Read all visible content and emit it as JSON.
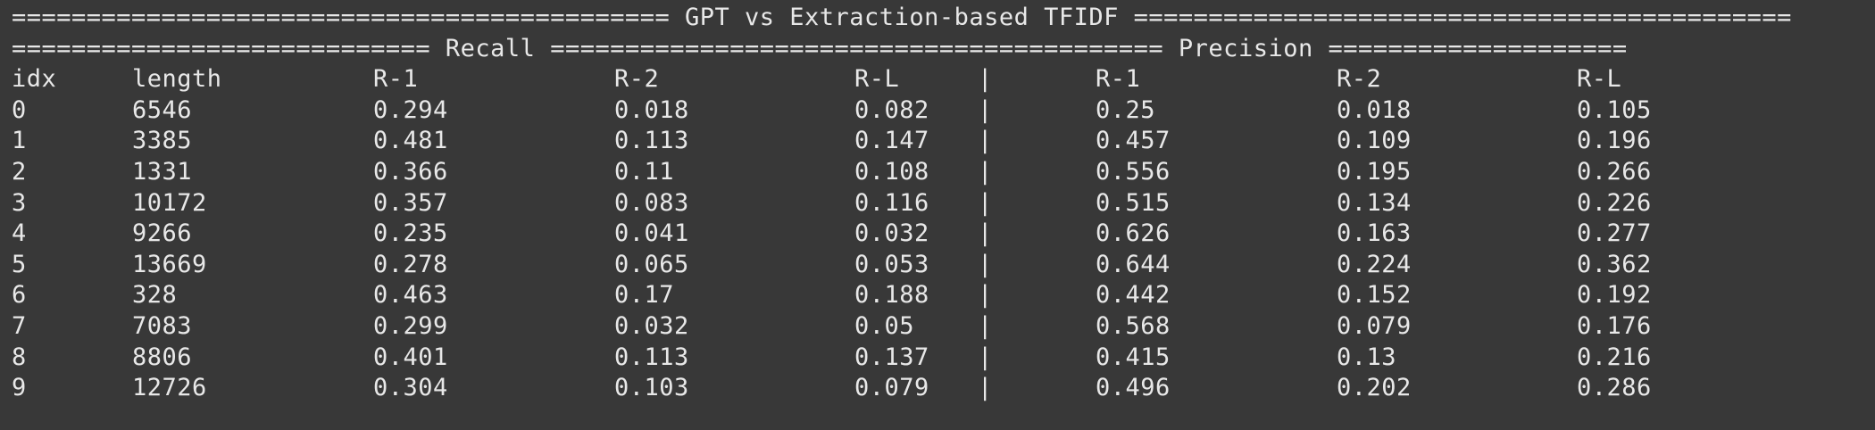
{
  "title_line": "============================================ GPT vs Extraction-based TFIDF ============================================",
  "section_line": "============================ Recall ========================================= Precision ====================",
  "headers": [
    "idx",
    "length",
    "R-1",
    "R-2",
    "R-L",
    "|",
    "R-1",
    "R-2",
    "R-L"
  ],
  "rows": [
    [
      "0",
      "6546",
      "0.294",
      "0.018",
      "0.082",
      "|",
      "0.25",
      "0.018",
      "0.105"
    ],
    [
      "1",
      "3385",
      "0.481",
      "0.113",
      "0.147",
      "|",
      "0.457",
      "0.109",
      "0.196"
    ],
    [
      "2",
      "1331",
      "0.366",
      "0.11",
      "0.108",
      "|",
      "0.556",
      "0.195",
      "0.266"
    ],
    [
      "3",
      "10172",
      "0.357",
      "0.083",
      "0.116",
      "|",
      "0.515",
      "0.134",
      "0.226"
    ],
    [
      "4",
      "9266",
      "0.235",
      "0.041",
      "0.032",
      "|",
      "0.626",
      "0.163",
      "0.277"
    ],
    [
      "5",
      "13669",
      "0.278",
      "0.065",
      "0.053",
      "|",
      "0.644",
      "0.224",
      "0.362"
    ],
    [
      "6",
      "328",
      "0.463",
      "0.17",
      "0.188",
      "|",
      "0.442",
      "0.152",
      "0.192"
    ],
    [
      "7",
      "7083",
      "0.299",
      "0.032",
      "0.05",
      "|",
      "0.568",
      "0.079",
      "0.176"
    ],
    [
      "8",
      "8806",
      "0.401",
      "0.113",
      "0.137",
      "|",
      "0.415",
      "0.13",
      "0.216"
    ],
    [
      "9",
      "12726",
      "0.304",
      "0.103",
      "0.079",
      "|",
      "0.496",
      "0.202",
      "0.286"
    ]
  ]
}
